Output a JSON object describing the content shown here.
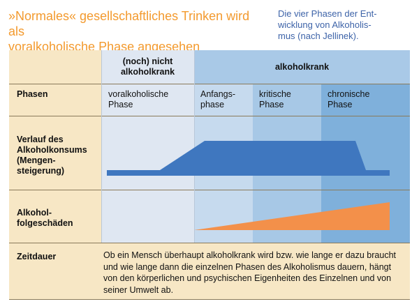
{
  "title": "»Normales« gesellschaftliches Trinken wird als\nvoralkoholische Phase angesehen",
  "caption": "Die vier Phasen der Ent-\nwicklung von Alkoholis-\nmus (nach Jellinek).",
  "header": {
    "not_alcoholic": "(noch) nicht\nalkoholkrank",
    "alcoholic": "alkoholkrank"
  },
  "rows": {
    "phasen": "Phasen",
    "verlauf": "Verlauf des\nAlkoholkonsums\n(Mengen-\nsteigerung)",
    "folgeschaeden": "Alkohol-\nfolgeschäden",
    "zeitdauer": "Zeitdauer"
  },
  "phases": [
    "voralkoholische\nPhase",
    "Anfangs-\nphase",
    "kritische\nPhase",
    "chronische\nPhase"
  ],
  "zeitdauer_text": "Ob ein Mensch überhaupt alkoholkrank wird bzw. wie lange er dazu braucht und wie lange dann die einzelnen Phasen des Alkoholismus dauern, hängt von den körperlichen und psychischen Eigenheiten des Einzelnen und von seiner Umwelt ab.",
  "colors": {
    "title": "#f39a2e",
    "caption": "#3d63a8",
    "background_tan": "#f7e7c5",
    "phase1": "#dfe7f2",
    "phase2": "#c6daee",
    "phase3": "#a7c8e6",
    "phase4": "#7fb0db",
    "consumption_band": "#3f77bf",
    "damage_wedge": "#f3904a"
  }
}
